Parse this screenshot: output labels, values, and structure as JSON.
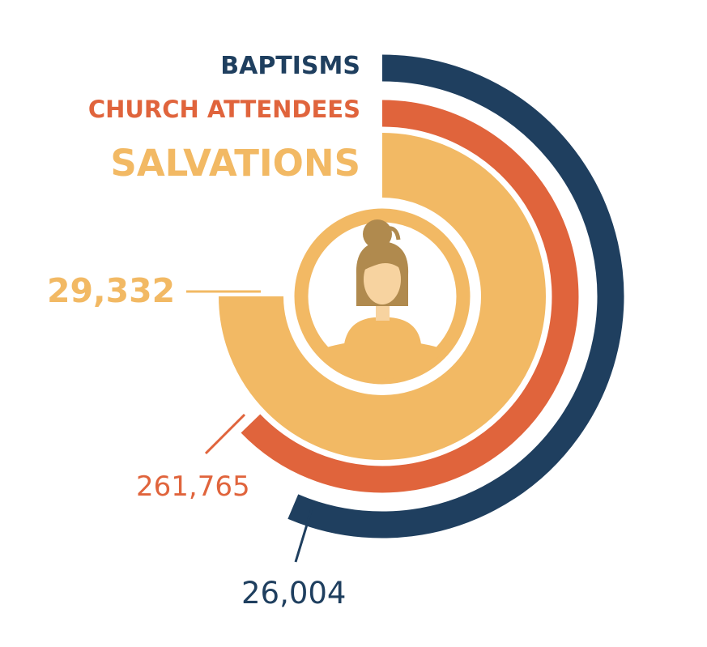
{
  "colors": {
    "baptisms": "#1f3f5f",
    "church_attendees": "#e0643c",
    "salvations": "#f2b964",
    "icon_hair": "#b08a4e",
    "icon_face": "#f7d3a0"
  },
  "center_icon": "woman-avatar-icon",
  "chart_data": {
    "type": "radial-bar",
    "series": [
      {
        "name": "BAPTISMS",
        "value": "26,004",
        "color": "#1f3f5f"
      },
      {
        "name": "CHURCH ATTENDEES",
        "value": "261,765",
        "color": "#e0643c"
      },
      {
        "name": "SALVATIONS",
        "value": "29,332",
        "color": "#f2b964"
      }
    ]
  }
}
